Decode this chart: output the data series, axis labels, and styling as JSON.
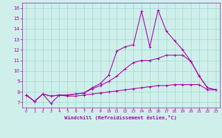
{
  "xlabel": "Windchill (Refroidissement éolien,°C)",
  "xlim": [
    -0.5,
    23.5
  ],
  "ylim": [
    6.5,
    16.5
  ],
  "yticks": [
    7,
    8,
    9,
    10,
    11,
    12,
    13,
    14,
    15,
    16
  ],
  "xticks": [
    0,
    1,
    2,
    3,
    4,
    5,
    6,
    7,
    8,
    9,
    10,
    11,
    12,
    13,
    14,
    15,
    16,
    17,
    18,
    19,
    20,
    21,
    22,
    23
  ],
  "background_color": "#cff0ea",
  "grid_color": "#aad8d2",
  "line_color": "#aa00aa",
  "line_width": 0.8,
  "series1": [
    7.7,
    7.1,
    7.8,
    6.9,
    7.7,
    7.6,
    7.6,
    7.7,
    7.8,
    7.9,
    8.0,
    8.1,
    8.2,
    8.3,
    8.4,
    8.5,
    8.6,
    8.6,
    8.7,
    8.7,
    8.7,
    8.7,
    8.2,
    8.2
  ],
  "series2": [
    7.7,
    7.1,
    7.8,
    7.6,
    7.7,
    7.7,
    7.8,
    7.9,
    8.3,
    8.6,
    9.0,
    9.5,
    10.2,
    10.8,
    11.0,
    11.0,
    11.2,
    11.5,
    11.5,
    11.5,
    10.9,
    9.5,
    8.4,
    8.2
  ],
  "series3": [
    7.7,
    7.1,
    7.8,
    7.6,
    7.7,
    7.7,
    7.8,
    7.9,
    8.4,
    8.8,
    9.6,
    11.9,
    12.3,
    12.5,
    15.7,
    12.3,
    15.8,
    13.8,
    12.9,
    12.0,
    10.9,
    9.5,
    8.4,
    8.2
  ]
}
